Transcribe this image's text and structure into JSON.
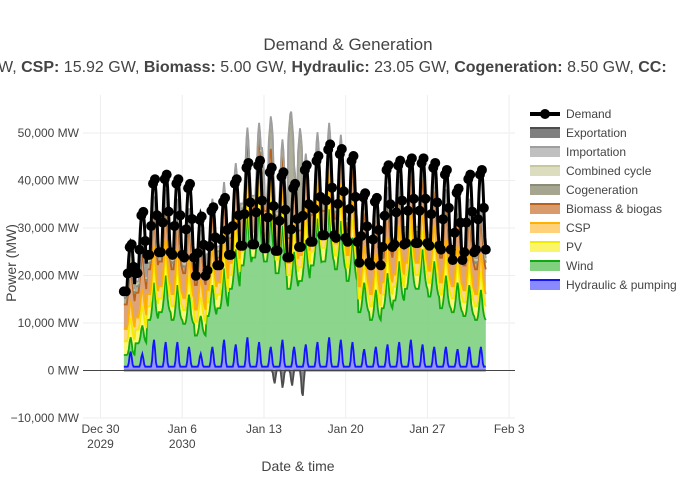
{
  "chart_data": {
    "type": "area",
    "title": "Demand & Generation",
    "subtitle_parts": [
      {
        "text": "W, ",
        "bold": false
      },
      {
        "text": "CSP:",
        "bold": true
      },
      {
        "text": " 15.92 GW, ",
        "bold": false
      },
      {
        "text": "Biomass:",
        "bold": true
      },
      {
        "text": " 5.00 GW, ",
        "bold": false
      },
      {
        "text": "Hydraulic:",
        "bold": true
      },
      {
        "text": " 23.05 GW, ",
        "bold": false
      },
      {
        "text": "Cogeneration:",
        "bold": true
      },
      {
        "text": " 8.50 GW, ",
        "bold": false
      },
      {
        "text": "CC:",
        "bold": true
      }
    ],
    "xlabel": "Date & time",
    "ylabel": "Power (MW)",
    "ylim": [
      -10000,
      58000
    ],
    "xlim_days": [
      -1.5,
      35.5
    ],
    "y_ticks": [
      -10000,
      0,
      10000,
      20000,
      30000,
      40000,
      50000
    ],
    "y_tick_labels": [
      "−10,000 MW",
      "0 MW",
      "10,000 MW",
      "20,000 MW",
      "30,000 MW",
      "40,000 MW",
      "50,000 MW"
    ],
    "x_ticks": [
      {
        "day": 0,
        "line1": "Dec 30",
        "line2": "2029"
      },
      {
        "day": 7,
        "line1": "Jan 6",
        "line2": "2030"
      },
      {
        "day": 14,
        "line1": "Jan 13",
        "line2": ""
      },
      {
        "day": 21,
        "line1": "Jan 20",
        "line2": ""
      },
      {
        "day": 28,
        "line1": "Jan 27",
        "line2": ""
      },
      {
        "day": 35,
        "line1": "Feb 3",
        "line2": ""
      }
    ],
    "data_range_days": [
      2,
      33
    ],
    "daily_peak_demand_mw": [
      27000,
      34000,
      41000,
      42000,
      41000,
      40000,
      33000,
      35000,
      37000,
      41000,
      44500,
      45000,
      43500,
      42500,
      40000,
      44000,
      46000,
      48500,
      47500,
      46000,
      38000,
      37000,
      44000,
      45000,
      45500,
      45500,
      44500,
      43000,
      39000,
      42000,
      43000,
      42500
    ],
    "daily_peak_wind_mw": [
      3000,
      6000,
      12000,
      14000,
      12000,
      11000,
      8000,
      13000,
      15000,
      20000,
      26000,
      28000,
      27000,
      24000,
      20000,
      22000,
      26000,
      27000,
      25000,
      22000,
      14000,
      12000,
      15000,
      17000,
      20000,
      20000,
      18000,
      15000,
      14000,
      13000,
      12000,
      11000
    ],
    "daily_peak_hydraulic_mw": [
      4000,
      3500,
      6500,
      6000,
      6000,
      5000,
      3500,
      5000,
      6500,
      5500,
      7000,
      6000,
      5000,
      6500,
      5000,
      5500,
      6000,
      7000,
      6500,
      6000,
      4500,
      5000,
      5500,
      6000,
      6500,
      5500,
      5000,
      5000,
      4500,
      5000,
      5000,
      6500
    ],
    "cogeneration_spikes": [
      {
        "day": 16.3,
        "peak_mw": 54500
      },
      {
        "day": 14.6,
        "peak_mw": 53000
      },
      {
        "day": 13.8,
        "peak_mw": 47000
      },
      {
        "day": 17.1,
        "peak_mw": 50500
      }
    ],
    "exportation_dips": [
      {
        "day": 14.9,
        "dip_mw": -3000
      },
      {
        "day": 15.6,
        "dip_mw": -4000
      },
      {
        "day": 16.4,
        "dip_mw": -3500
      },
      {
        "day": 17.3,
        "dip_mw": -6500
      }
    ],
    "series": [
      {
        "name": "Demand",
        "line": "#000000",
        "fill": "none",
        "marker": true
      },
      {
        "name": "Exportation",
        "line": "#4d4d4d",
        "fill": "#7f7f7f"
      },
      {
        "name": "Importation",
        "line": "#9e9e9e",
        "fill": "#c0c0c0"
      },
      {
        "name": "Combined cycle",
        "line": "#c8c8a0",
        "fill": "#dcdcbe"
      },
      {
        "name": "Cogeneration",
        "line": "#8b8b78",
        "fill": "#a6a690"
      },
      {
        "name": "Biomass & biogas",
        "line": "#b8621a",
        "fill": "#d99a6c"
      },
      {
        "name": "CSP",
        "line": "#ffb000",
        "fill": "#ffd27a"
      },
      {
        "name": "PV",
        "line": "#f2ea00",
        "fill": "#fbf56c"
      },
      {
        "name": "Wind",
        "line": "#0faa0f",
        "fill": "#80d080"
      },
      {
        "name": "Hydraulic & pumping",
        "line": "#1414ff",
        "fill": "#8a8aff"
      }
    ],
    "legend_position": "right",
    "grid": true
  }
}
